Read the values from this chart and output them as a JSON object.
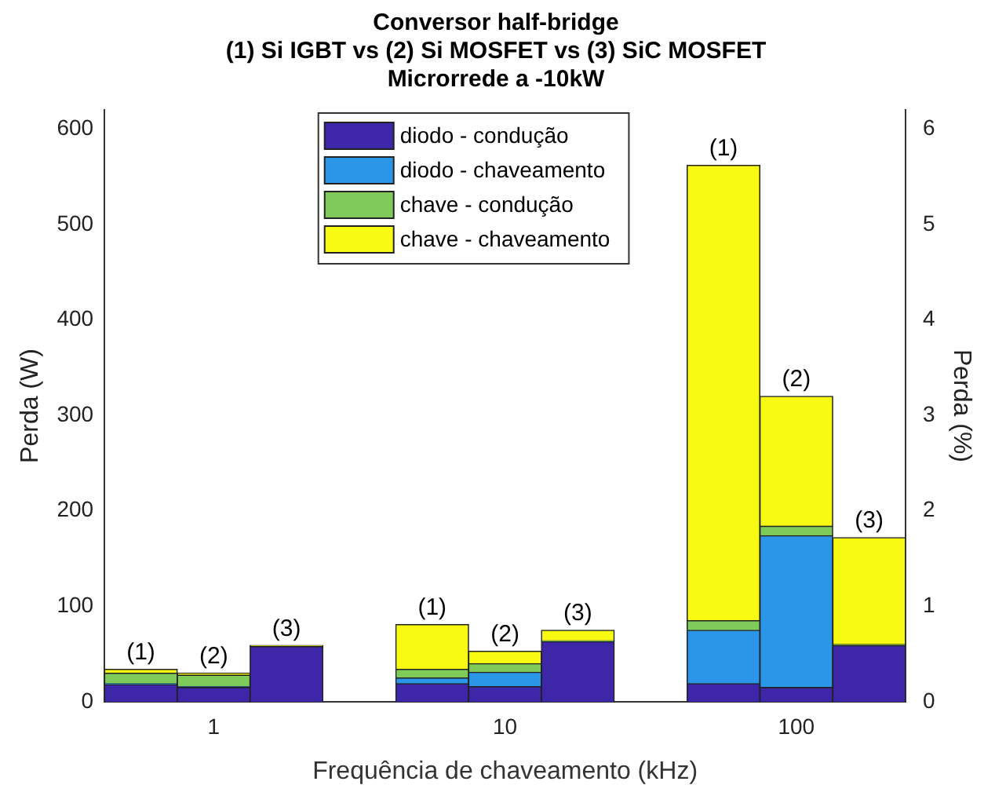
{
  "chart_data": {
    "type": "bar",
    "title": "Conversor half-bridge\n(1) Si IGBT vs (2) Si MOSFET vs (3) SiC MOSFET\nMicrorrede a -10kW",
    "xlabel": "Frequência de chaveamento (kHz)",
    "ylabel": "Perda (W)",
    "y2label": "Perda (%)",
    "categories": [
      null,
      "1",
      null,
      null,
      null,
      "10",
      null,
      null,
      null,
      "100",
      null
    ],
    "stacked": true,
    "series": [
      {
        "name": "diodo - condução",
        "color": "#3e26a8",
        "values": [
          18,
          15,
          58,
          null,
          19,
          16,
          63,
          null,
          19,
          15,
          59
        ]
      },
      {
        "name": "diodo - chaveamento",
        "color": "#2b95e8",
        "values": [
          1,
          1,
          0,
          null,
          6,
          15,
          0,
          null,
          56,
          159,
          0
        ]
      },
      {
        "name": "chave - condução",
        "color": "#7fcb5a",
        "values": [
          11,
          12,
          0,
          null,
          9,
          9,
          1,
          null,
          10,
          10,
          1
        ]
      },
      {
        "name": "chave - chaveamento",
        "color": "#f8fa12",
        "values": [
          4,
          2,
          1,
          null,
          47,
          13,
          11,
          null,
          477,
          136,
          112
        ]
      }
    ],
    "annotations": [
      "(1)",
      "(2)",
      "(3)",
      "(1)",
      "(2)",
      "(3)",
      "(1)",
      "(2)",
      "(3)"
    ],
    "ylim": [
      0,
      620
    ],
    "yticks": [
      0,
      100,
      200,
      300,
      400,
      500,
      600
    ],
    "y2lim": [
      0,
      6.2
    ],
    "y2ticks": [
      0,
      1,
      2,
      3,
      4,
      5,
      6
    ],
    "legend": "top",
    "grid": false
  }
}
